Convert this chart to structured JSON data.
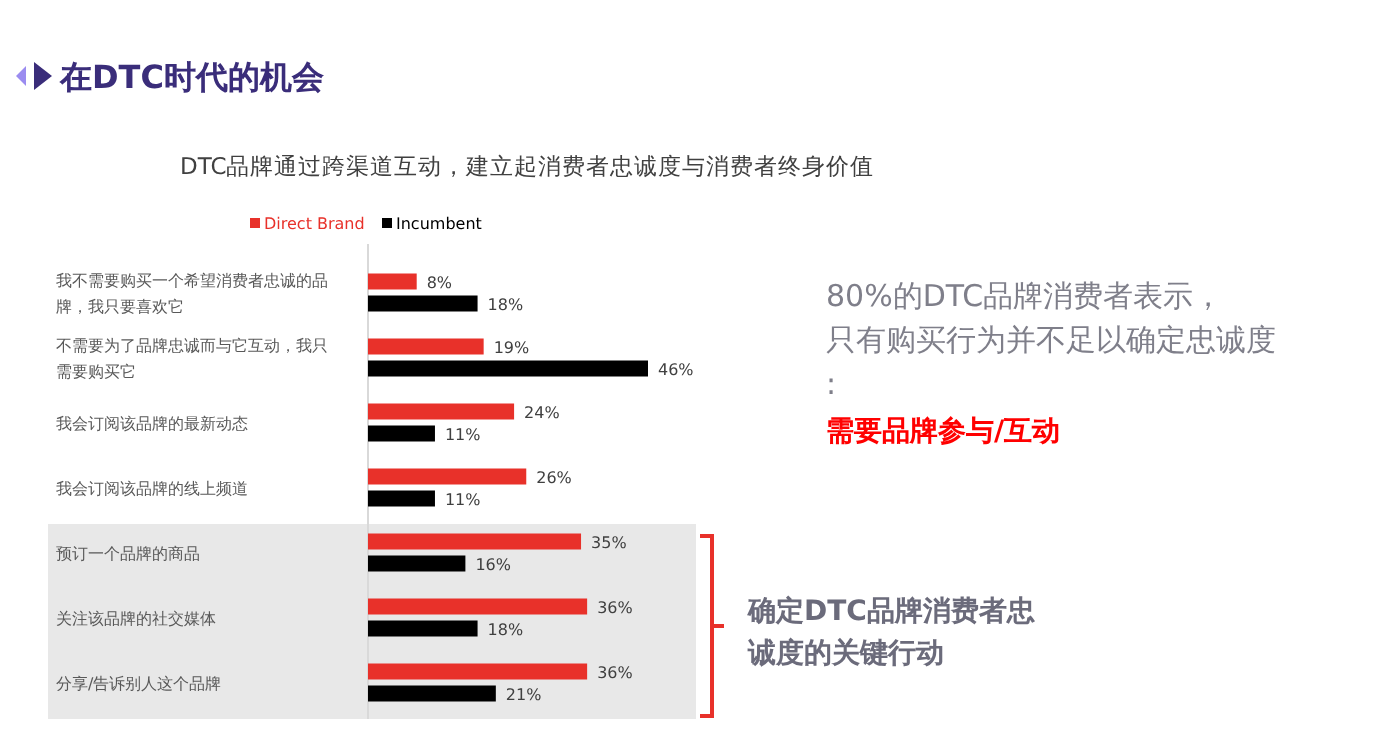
{
  "chart_data": {
    "type": "bar",
    "orientation": "horizontal",
    "title": "在DTC时代的机会",
    "subtitle": "DTC品牌通过跨渠道互动，建立起消费者忠诚度与消费者终身价值",
    "categories": [
      "我不需要购买一个希望消费者忠诚的品牌，我只要喜欢它",
      "不需要为了品牌忠诚而与它互动，我只需要购买它",
      "我会订阅该品牌的最新动态",
      "我会订阅该品牌的线上频道",
      "预订一个品牌的商品",
      "关注该品牌的社交媒体",
      "分享/告诉别人这个品牌"
    ],
    "series": [
      {
        "name": "Direct Brand",
        "color": "#e8312a",
        "values": [
          8,
          19,
          24,
          26,
          35,
          36,
          36
        ],
        "value_labels": [
          "8%",
          "19%",
          "24%",
          "26%",
          "35%",
          "36%",
          "36%"
        ]
      },
      {
        "name": "Incumbent",
        "color": "#000000",
        "values": [
          18,
          46,
          11,
          11,
          16,
          18,
          21
        ],
        "value_labels": [
          "18%",
          "46%",
          "11%",
          "11%",
          "16%",
          "18%",
          "21%"
        ]
      }
    ],
    "legend": "top",
    "bands": [
      {
        "axis": "y",
        "from": "预订一个品牌的商品",
        "to": "分享/告诉别人这个品牌",
        "color": "#e8e8e8"
      }
    ],
    "annotations": [
      "80%的DTC品牌消费者表示，只有购买行为并不足以确定忠诚度:",
      "需要品牌参与/互动",
      "确定DTC品牌消费者忠诚度的关键行动"
    ]
  }
}
